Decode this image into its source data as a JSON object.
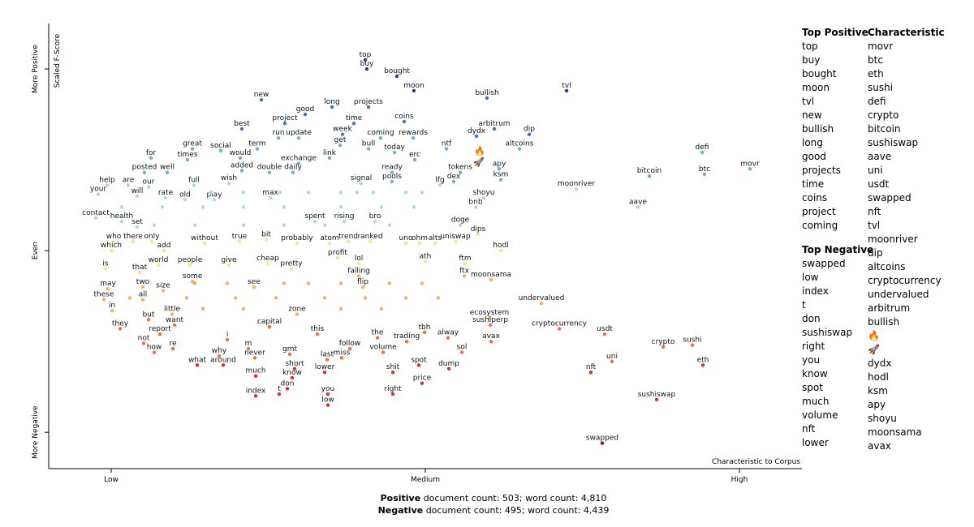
{
  "chart_data": {
    "type": "scatter",
    "x_label": "Characteristic to Corpus",
    "y_label": "Scaled F-Score",
    "xlim": [
      0,
      928
    ],
    "ylim": [
      -1.2,
      1.25
    ],
    "xticks": [
      {
        "value": 77,
        "label": "Low"
      },
      {
        "value": 464,
        "label": "Medium"
      },
      {
        "value": 851,
        "label": "High"
      }
    ],
    "yticks": [
      {
        "value": -1,
        "label": "More Negative"
      },
      {
        "value": 0,
        "label": "Even"
      },
      {
        "value": 1,
        "label": "More Positive"
      }
    ],
    "colors": [
      "#a50026",
      "#d73027",
      "#f46d43",
      "#fdae61",
      "#fee090",
      "#abd9e9",
      "#74add1",
      "#4575b4",
      "#313695"
    ],
    "labels": [
      "top",
      "buy",
      "bought",
      "moon",
      "bullish",
      "tvl",
      "new",
      "long",
      "projects",
      "good",
      "project",
      "time",
      "coins",
      "best",
      "arbitrum",
      "dip",
      "run",
      "update",
      "week",
      "coming",
      "rewards",
      "dydx",
      "term",
      "get",
      "bull",
      "today",
      "ntf",
      "altcoins",
      "great",
      "social",
      "would",
      "link",
      "for",
      "times",
      "exchange",
      "erc",
      "defi",
      "posted",
      "well",
      "added",
      "double",
      "daily",
      "ready",
      "tokens",
      "apy",
      "bitcoin",
      "btc",
      "movr",
      "help",
      "are",
      "our",
      "full",
      "wish",
      "signal",
      "pools",
      "lfg",
      "dex",
      "ksm",
      "moonriver",
      "your",
      "will",
      "rate",
      "old",
      "play",
      "max",
      "shoyu",
      "bnb",
      "aave",
      "contact",
      "health",
      "set",
      "spent",
      "rising",
      "bro",
      "doge",
      "dips",
      "who",
      "there",
      "only",
      "without",
      "true",
      "bit",
      "probably",
      "atom",
      "trend",
      "ranked",
      "uno",
      "ohm",
      "alts",
      "uniswap",
      "hodl",
      "which",
      "add",
      "profit",
      "ath",
      "is",
      "world",
      "people",
      "give",
      "cheap",
      "pretty",
      "lol",
      "ftm",
      "that",
      "falling",
      "ftx",
      "moonsama",
      "some",
      "may",
      "two",
      "size",
      "see",
      "flip",
      "these",
      "all",
      "undervalued",
      "in",
      "little",
      "ecosystem",
      "but",
      "want",
      "they",
      "cryptocurrency",
      "sushiperp",
      "usdt",
      "report",
      "capital",
      "zone",
      "this",
      "the",
      "trading",
      "tbh",
      "alway",
      "avax",
      "crypto",
      "sushi",
      "not",
      "re",
      "i",
      "m",
      "follow",
      "sol",
      "how",
      "gmt",
      "why",
      "never",
      "last",
      "miss",
      "volume",
      "uni",
      "eth",
      "what",
      "around",
      "short",
      "shit",
      "spot",
      "dump",
      "nft",
      "much",
      "know",
      "lower",
      "price",
      "don",
      "you",
      "index",
      "t",
      "right",
      "low",
      "sushiswap",
      "swapped",
      null,
      null,
      null,
      null,
      null,
      null,
      null,
      null,
      null,
      null,
      null,
      null,
      null,
      null,
      null,
      null,
      null,
      null,
      null,
      null,
      null,
      null,
      null,
      null,
      null,
      null,
      null,
      null,
      null,
      null,
      null,
      null,
      null,
      null,
      null,
      null,
      null,
      null,
      null,
      null,
      null,
      null
    ],
    "x": [
      390,
      392,
      429,
      450,
      540,
      638,
      262,
      349,
      394,
      316,
      291,
      376,
      438,
      238,
      549,
      592,
      283,
      308,
      362,
      409,
      449,
      527,
      257,
      359,
      394,
      426,
      490,
      580,
      177,
      212,
      236,
      346,
      126,
      171,
      308,
      451,
      805,
      118,
      146,
      238,
      272,
      301,
      423,
      507,
      555,
      740,
      808,
      864,
      72,
      98,
      123,
      179,
      222,
      385,
      423,
      482,
      499,
      557,
      650,
      61,
      109,
      144,
      168,
      204,
      273,
      536,
      526,
      726,
      58,
      90,
      109,
      328,
      364,
      402,
      507,
      529,
      80,
      104,
      127,
      192,
      235,
      268,
      306,
      346,
      369,
      396,
      440,
      457,
      476,
      501,
      557,
      77,
      142,
      356,
      464,
      70,
      135,
      174,
      222,
      270,
      299,
      382,
      513,
      112,
      382,
      512,
      545,
      177,
      73,
      116,
      141,
      253,
      387,
      68,
      116,
      607,
      78,
      152,
      543,
      123,
      155,
      88,
      629,
      544,
      685,
      137,
      272,
      306,
      331,
      405,
      441,
      463,
      492,
      545,
      757,
      793,
      117,
      153,
      220,
      246,
      371,
      509,
      130,
      297,
      210,
      254,
      343,
      361,
      412,
      694,
      806,
      183,
      215,
      303,
      424,
      456,
      493,
      668,
      255,
      300,
      340,
      460,
      294,
      344,
      255,
      284,
      424,
      344,
      749,
      682,
      200,
      240,
      285,
      320,
      360,
      380,
      400,
      440,
      460,
      90,
      140,
      190,
      240,
      290,
      360,
      410,
      450,
      130,
      180,
      240,
      290,
      340,
      420,
      180,
      220,
      290,
      320,
      360,
      420,
      460,
      100,
      170,
      230,
      280,
      340,
      390,
      440,
      480,
      190,
      240,
      360,
      410
    ],
    "y": [
      1.05,
      1.0,
      0.96,
      0.88,
      0.84,
      0.88,
      0.83,
      0.79,
      0.79,
      0.75,
      0.7,
      0.7,
      0.71,
      0.67,
      0.67,
      0.64,
      0.62,
      0.62,
      0.64,
      0.62,
      0.62,
      0.63,
      0.56,
      0.58,
      0.56,
      0.54,
      0.56,
      0.56,
      0.56,
      0.55,
      0.51,
      0.51,
      0.51,
      0.5,
      0.48,
      0.5,
      0.54,
      0.43,
      0.43,
      0.44,
      0.43,
      0.43,
      0.43,
      0.43,
      0.45,
      0.41,
      0.42,
      0.45,
      0.36,
      0.36,
      0.35,
      0.36,
      0.37,
      0.37,
      0.38,
      0.36,
      0.38,
      0.39,
      0.34,
      0.31,
      0.3,
      0.29,
      0.28,
      0.28,
      0.29,
      0.29,
      0.24,
      0.24,
      0.18,
      0.16,
      0.13,
      0.16,
      0.16,
      0.16,
      0.14,
      0.09,
      0.05,
      0.05,
      0.05,
      0.04,
      0.05,
      0.06,
      0.04,
      0.04,
      0.05,
      0.05,
      0.04,
      0.04,
      0.04,
      0.05,
      0.0,
      0.0,
      0.0,
      -0.04,
      -0.06,
      -0.1,
      -0.08,
      -0.08,
      -0.08,
      -0.07,
      -0.1,
      -0.07,
      -0.07,
      -0.12,
      -0.14,
      -0.14,
      -0.16,
      -0.17,
      -0.21,
      -0.2,
      -0.22,
      -0.2,
      -0.2,
      -0.27,
      -0.27,
      -0.29,
      -0.33,
      -0.35,
      -0.37,
      -0.38,
      -0.41,
      -0.43,
      -0.43,
      -0.41,
      -0.46,
      -0.46,
      -0.42,
      -0.35,
      -0.46,
      -0.48,
      -0.5,
      -0.45,
      -0.48,
      -0.5,
      -0.53,
      -0.52,
      -0.51,
      -0.54,
      -0.49,
      -0.54,
      -0.54,
      -0.56,
      -0.56,
      -0.57,
      -0.58,
      -0.59,
      -0.6,
      -0.59,
      -0.56,
      -0.61,
      -0.63,
      -0.63,
      -0.63,
      -0.65,
      -0.67,
      -0.63,
      -0.65,
      -0.67,
      -0.69,
      -0.7,
      -0.67,
      -0.73,
      -0.76,
      -0.79,
      -0.8,
      -0.79,
      -0.79,
      -0.85,
      -0.82,
      -1.06,
      0.32,
      0.32,
      0.32,
      0.32,
      0.32,
      0.32,
      0.32,
      0.32,
      0.32,
      0.24,
      0.24,
      0.24,
      0.24,
      0.24,
      0.24,
      0.24,
      0.24,
      0.14,
      0.14,
      0.14,
      0.14,
      0.14,
      0.14,
      -0.18,
      -0.18,
      -0.18,
      -0.18,
      -0.18,
      -0.18,
      -0.18,
      -0.26,
      -0.26,
      -0.26,
      -0.26,
      -0.26,
      -0.26,
      -0.26,
      -0.26,
      -0.32,
      -0.32,
      -0.32,
      -0.32
    ],
    "icons": {
      "labels": [
        "🔥",
        "🚀"
      ],
      "x": [
        531,
        530
      ],
      "y": [
        0.55,
        0.49
      ]
    }
  },
  "top_positive": {
    "title": "Top Positive",
    "terms": [
      "top",
      "buy",
      "bought",
      "moon",
      "tvl",
      "new",
      "bullish",
      "long",
      "good",
      "projects",
      "time",
      "coins",
      "project",
      "coming"
    ]
  },
  "characteristic": {
    "title": "Characteristic",
    "terms": [
      "movr",
      "btc",
      "eth",
      "sushi",
      "defi",
      "crypto",
      "bitcoin",
      "sushiswap",
      "aave",
      "uni",
      "usdt",
      "swapped",
      "nft",
      "tvl",
      "moonriver",
      "dip",
      "altcoins",
      "cryptocurrency",
      "undervalued",
      "arbitrum",
      "bullish",
      "🔥",
      "🚀",
      "dydx",
      "hodl",
      "ksm",
      "apy",
      "shoyu",
      "moonsama",
      "avax"
    ]
  },
  "top_negative": {
    "title": "Top Negative",
    "terms": [
      "swapped",
      "low",
      "index",
      "t",
      "don",
      "sushiswap",
      "right",
      "you",
      "know",
      "spot",
      "much",
      "volume",
      "nft",
      "lower"
    ]
  },
  "footer": {
    "positive": {
      "label": "Positive",
      "text": "document count: 503; word count: 4,810"
    },
    "negative": {
      "label": "Negative",
      "text": "document count: 495; word count: 4,439"
    }
  }
}
